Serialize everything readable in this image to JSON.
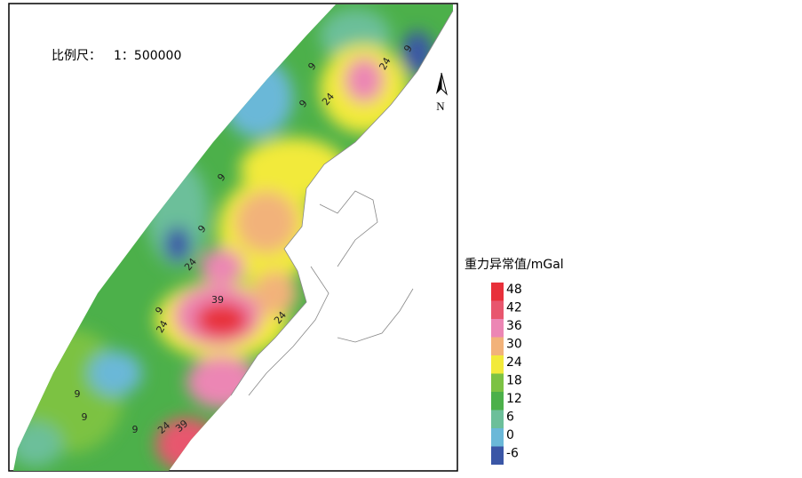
{
  "map": {
    "scale_label": "比例尺：",
    "scale_ratio": "1：500000",
    "north": "N",
    "contour_labels": [
      9,
      24,
      9,
      9,
      24,
      9,
      9,
      24,
      39,
      9,
      24,
      24,
      9,
      9,
      9,
      24,
      39
    ]
  },
  "legend": {
    "title": "重力异常值/mGal",
    "ticks": [
      48,
      42,
      36,
      30,
      24,
      18,
      12,
      6,
      0,
      -6
    ],
    "colors": [
      "#e8303a",
      "#e8566e",
      "#ec86b4",
      "#f2b27a",
      "#f2ea3a",
      "#7cc243",
      "#4cb04a",
      "#6cbf9a",
      "#6ab8d8",
      "#3a56a6"
    ]
  }
}
